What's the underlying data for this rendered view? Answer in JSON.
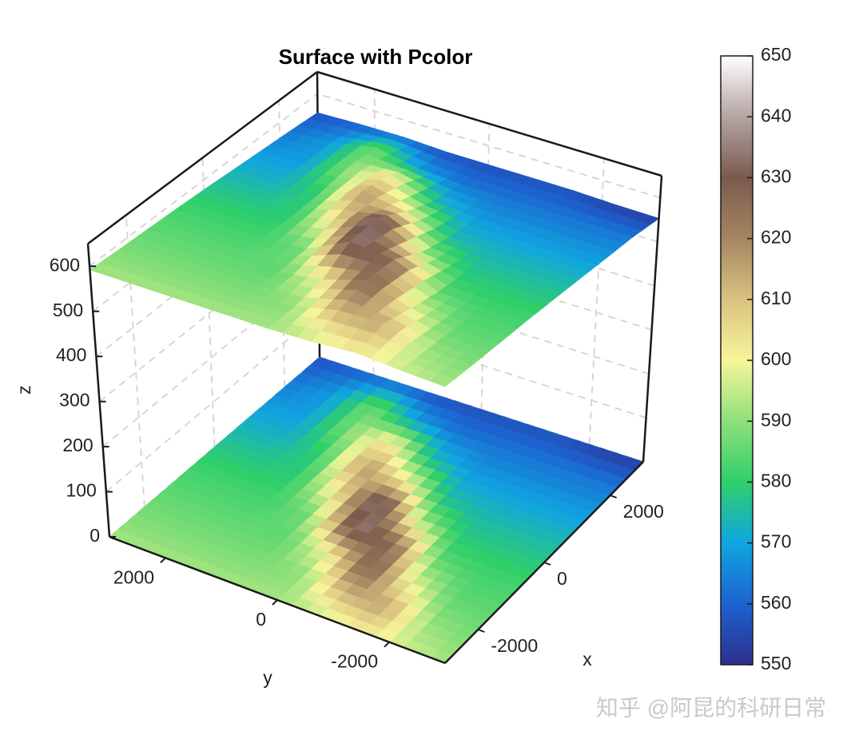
{
  "chart_data": {
    "type": "surface",
    "title": "Surface with Pcolor",
    "xlabel": "x",
    "ylabel": "y",
    "zlabel": "z",
    "x": [
      -3000,
      -2250,
      -1500,
      -750,
      0,
      750,
      1500,
      2250,
      3000
    ],
    "y": [
      -3000,
      -2250,
      -1500,
      -750,
      0,
      750,
      1500,
      2250,
      3000
    ],
    "z": [
      [
        592,
        588,
        585,
        582,
        578,
        573,
        568,
        563,
        553
      ],
      [
        596,
        591,
        585,
        582,
        578,
        573,
        568,
        563,
        554
      ],
      [
        602,
        615,
        599,
        585,
        578,
        573,
        568,
        563,
        557
      ],
      [
        595,
        613,
        630,
        626,
        592,
        575,
        568,
        563,
        557
      ],
      [
        592,
        590,
        600,
        635,
        639,
        602,
        575,
        563,
        557
      ],
      [
        592,
        588,
        585,
        588,
        604,
        618,
        605,
        569,
        557
      ],
      [
        592,
        588,
        585,
        582,
        579,
        580,
        589,
        587,
        561
      ],
      [
        592,
        588,
        585,
        582,
        578,
        573,
        569,
        568,
        560
      ],
      [
        592,
        588,
        585,
        582,
        578,
        573,
        568,
        563,
        557
      ]
    ],
    "xlim": [
      -3000,
      3000
    ],
    "ylim": [
      -3000,
      3000
    ],
    "zlim": [
      0,
      650
    ],
    "xticks": [
      -2000,
      0,
      2000
    ],
    "yticks": [
      -2000,
      0,
      2000
    ],
    "zticks": [
      0,
      100,
      200,
      300,
      400,
      500,
      600
    ],
    "grid": true,
    "colorbar": {
      "clim": [
        550,
        650
      ],
      "ticks": [
        550,
        560,
        570,
        580,
        590,
        600,
        610,
        620,
        630,
        640,
        650
      ]
    },
    "colormap": [
      "#2e2f8e",
      "#1d62cf",
      "#10a6e0",
      "#2fcf6a",
      "#8fe07a",
      "#f7f59a",
      "#d9c27f",
      "#a48662",
      "#7b5a4e",
      "#b4a4a2",
      "#ffffff"
    ]
  },
  "watermark": "知乎 @阿昆的科研日常"
}
